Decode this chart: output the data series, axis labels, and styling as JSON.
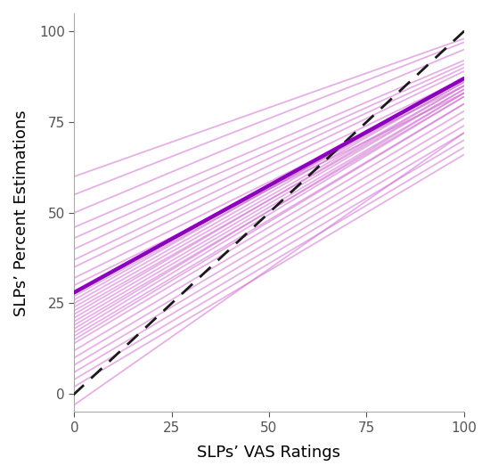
{
  "title": "",
  "xlabel": "SLPs’ VAS Ratings",
  "ylabel": "SLPs’ Percent Estimations",
  "xlim": [
    0,
    100
  ],
  "ylim": [
    -5,
    105
  ],
  "xticks": [
    0,
    25,
    50,
    75,
    100
  ],
  "yticks": [
    0,
    25,
    50,
    75,
    100
  ],
  "individual_lines": [
    {
      "x": [
        0,
        100
      ],
      "y": [
        28,
        87
      ]
    },
    {
      "x": [
        0,
        100
      ],
      "y": [
        27,
        86
      ]
    },
    {
      "x": [
        0,
        100
      ],
      "y": [
        26,
        87
      ]
    },
    {
      "x": [
        0,
        100
      ],
      "y": [
        25,
        86
      ]
    },
    {
      "x": [
        0,
        100
      ],
      "y": [
        24,
        85
      ]
    },
    {
      "x": [
        0,
        100
      ],
      "y": [
        23,
        84
      ]
    },
    {
      "x": [
        0,
        100
      ],
      "y": [
        22,
        85
      ]
    },
    {
      "x": [
        0,
        100
      ],
      "y": [
        21,
        84
      ]
    },
    {
      "x": [
        0,
        100
      ],
      "y": [
        20,
        83
      ]
    },
    {
      "x": [
        0,
        100
      ],
      "y": [
        19,
        82
      ]
    },
    {
      "x": [
        0,
        100
      ],
      "y": [
        18,
        83
      ]
    },
    {
      "x": [
        0,
        100
      ],
      "y": [
        16,
        80
      ]
    },
    {
      "x": [
        0,
        100
      ],
      "y": [
        14,
        78
      ]
    },
    {
      "x": [
        0,
        100
      ],
      "y": [
        12,
        76
      ]
    },
    {
      "x": [
        0,
        100
      ],
      "y": [
        10,
        74
      ]
    },
    {
      "x": [
        0,
        100
      ],
      "y": [
        8,
        72
      ]
    },
    {
      "x": [
        0,
        100
      ],
      "y": [
        35,
        87
      ]
    },
    {
      "x": [
        0,
        100
      ],
      "y": [
        37,
        89
      ]
    },
    {
      "x": [
        0,
        100
      ],
      "y": [
        40,
        90
      ]
    },
    {
      "x": [
        0,
        100
      ],
      "y": [
        43,
        91
      ]
    },
    {
      "x": [
        0,
        100
      ],
      "y": [
        46,
        92
      ]
    },
    {
      "x": [
        0,
        100
      ],
      "y": [
        50,
        95
      ]
    },
    {
      "x": [
        0,
        100
      ],
      "y": [
        55,
        97
      ]
    },
    {
      "x": [
        0,
        100
      ],
      "y": [
        60,
        98
      ]
    },
    {
      "x": [
        0,
        100
      ],
      "y": [
        30,
        83
      ]
    },
    {
      "x": [
        0,
        100
      ],
      "y": [
        32,
        85
      ]
    },
    {
      "x": [
        0,
        100
      ],
      "y": [
        6,
        70
      ]
    },
    {
      "x": [
        0,
        100
      ],
      "y": [
        4,
        68
      ]
    },
    {
      "x": [
        0,
        100
      ],
      "y": [
        2,
        66
      ]
    },
    {
      "x": [
        0,
        100
      ],
      "y": [
        -3,
        72
      ]
    },
    {
      "x": [
        0,
        100
      ],
      "y": [
        15,
        80
      ]
    },
    {
      "x": [
        0,
        100
      ],
      "y": [
        17,
        82
      ]
    }
  ],
  "mean_line": {
    "x": [
      0,
      100
    ],
    "y": [
      28,
      87
    ]
  },
  "reference_line": {
    "x": [
      -5,
      105
    ],
    "y": [
      -5,
      105
    ]
  },
  "individual_color": "#D070D0",
  "mean_color": "#8B00BB",
  "reference_color": "#1a1a1a",
  "individual_alpha": 0.55,
  "individual_lw": 1.3,
  "mean_lw": 3.2,
  "reference_lw": 2.0,
  "background_color": "#ffffff",
  "figsize": [
    5.5,
    5.32
  ],
  "dpi": 100
}
